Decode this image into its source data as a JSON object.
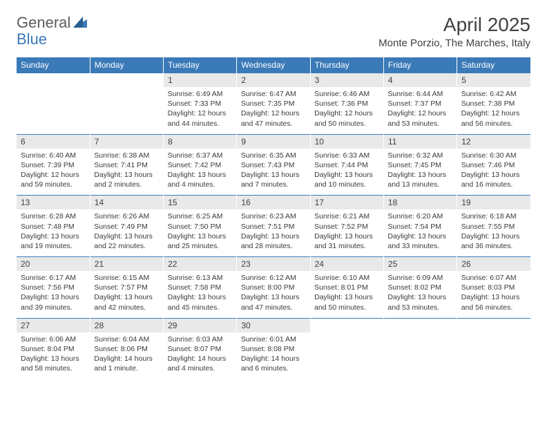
{
  "logo": {
    "text1": "General",
    "text2": "Blue"
  },
  "title": "April 2025",
  "location": "Monte Porzio, The Marches, Italy",
  "colors": {
    "header_bg": "#3a7ab8",
    "header_text": "#ffffff",
    "daynum_bg": "#e9e9e9",
    "border": "#3a7ab8",
    "body_text": "#3a3a3a",
    "title_text": "#414141",
    "logo_gray": "#5a5a5a",
    "logo_blue": "#3a7ab8"
  },
  "weekdays": [
    "Sunday",
    "Monday",
    "Tuesday",
    "Wednesday",
    "Thursday",
    "Friday",
    "Saturday"
  ],
  "weeks": [
    [
      null,
      null,
      {
        "n": "1",
        "sr": "6:49 AM",
        "ss": "7:33 PM",
        "dl": "12 hours and 44 minutes."
      },
      {
        "n": "2",
        "sr": "6:47 AM",
        "ss": "7:35 PM",
        "dl": "12 hours and 47 minutes."
      },
      {
        "n": "3",
        "sr": "6:46 AM",
        "ss": "7:36 PM",
        "dl": "12 hours and 50 minutes."
      },
      {
        "n": "4",
        "sr": "6:44 AM",
        "ss": "7:37 PM",
        "dl": "12 hours and 53 minutes."
      },
      {
        "n": "5",
        "sr": "6:42 AM",
        "ss": "7:38 PM",
        "dl": "12 hours and 56 minutes."
      }
    ],
    [
      {
        "n": "6",
        "sr": "6:40 AM",
        "ss": "7:39 PM",
        "dl": "12 hours and 59 minutes."
      },
      {
        "n": "7",
        "sr": "6:38 AM",
        "ss": "7:41 PM",
        "dl": "13 hours and 2 minutes."
      },
      {
        "n": "8",
        "sr": "6:37 AM",
        "ss": "7:42 PM",
        "dl": "13 hours and 4 minutes."
      },
      {
        "n": "9",
        "sr": "6:35 AM",
        "ss": "7:43 PM",
        "dl": "13 hours and 7 minutes."
      },
      {
        "n": "10",
        "sr": "6:33 AM",
        "ss": "7:44 PM",
        "dl": "13 hours and 10 minutes."
      },
      {
        "n": "11",
        "sr": "6:32 AM",
        "ss": "7:45 PM",
        "dl": "13 hours and 13 minutes."
      },
      {
        "n": "12",
        "sr": "6:30 AM",
        "ss": "7:46 PM",
        "dl": "13 hours and 16 minutes."
      }
    ],
    [
      {
        "n": "13",
        "sr": "6:28 AM",
        "ss": "7:48 PM",
        "dl": "13 hours and 19 minutes."
      },
      {
        "n": "14",
        "sr": "6:26 AM",
        "ss": "7:49 PM",
        "dl": "13 hours and 22 minutes."
      },
      {
        "n": "15",
        "sr": "6:25 AM",
        "ss": "7:50 PM",
        "dl": "13 hours and 25 minutes."
      },
      {
        "n": "16",
        "sr": "6:23 AM",
        "ss": "7:51 PM",
        "dl": "13 hours and 28 minutes."
      },
      {
        "n": "17",
        "sr": "6:21 AM",
        "ss": "7:52 PM",
        "dl": "13 hours and 31 minutes."
      },
      {
        "n": "18",
        "sr": "6:20 AM",
        "ss": "7:54 PM",
        "dl": "13 hours and 33 minutes."
      },
      {
        "n": "19",
        "sr": "6:18 AM",
        "ss": "7:55 PM",
        "dl": "13 hours and 36 minutes."
      }
    ],
    [
      {
        "n": "20",
        "sr": "6:17 AM",
        "ss": "7:56 PM",
        "dl": "13 hours and 39 minutes."
      },
      {
        "n": "21",
        "sr": "6:15 AM",
        "ss": "7:57 PM",
        "dl": "13 hours and 42 minutes."
      },
      {
        "n": "22",
        "sr": "6:13 AM",
        "ss": "7:58 PM",
        "dl": "13 hours and 45 minutes."
      },
      {
        "n": "23",
        "sr": "6:12 AM",
        "ss": "8:00 PM",
        "dl": "13 hours and 47 minutes."
      },
      {
        "n": "24",
        "sr": "6:10 AM",
        "ss": "8:01 PM",
        "dl": "13 hours and 50 minutes."
      },
      {
        "n": "25",
        "sr": "6:09 AM",
        "ss": "8:02 PM",
        "dl": "13 hours and 53 minutes."
      },
      {
        "n": "26",
        "sr": "6:07 AM",
        "ss": "8:03 PM",
        "dl": "13 hours and 56 minutes."
      }
    ],
    [
      {
        "n": "27",
        "sr": "6:06 AM",
        "ss": "8:04 PM",
        "dl": "13 hours and 58 minutes."
      },
      {
        "n": "28",
        "sr": "6:04 AM",
        "ss": "8:06 PM",
        "dl": "14 hours and 1 minute."
      },
      {
        "n": "29",
        "sr": "6:03 AM",
        "ss": "8:07 PM",
        "dl": "14 hours and 4 minutes."
      },
      {
        "n": "30",
        "sr": "6:01 AM",
        "ss": "8:08 PM",
        "dl": "14 hours and 6 minutes."
      },
      null,
      null,
      null
    ]
  ],
  "labels": {
    "sunrise": "Sunrise:",
    "sunset": "Sunset:",
    "daylight": "Daylight:"
  }
}
